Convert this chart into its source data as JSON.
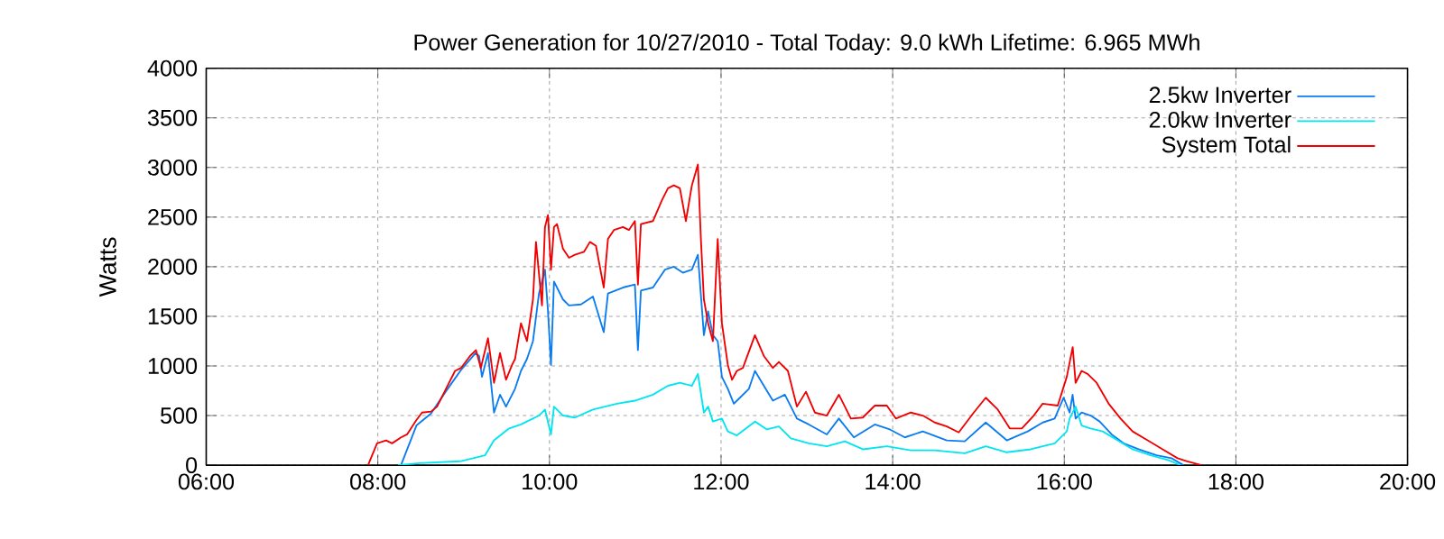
{
  "chart_data": {
    "type": "line",
    "title": "Power Generation for 10/27/2010 - Total Today: 9.0 kWh   Lifetime: 6.965 MWh",
    "ylabel": "Watts",
    "xlim": [
      6,
      20
    ],
    "ylim": [
      0,
      4000
    ],
    "xticks": [
      {
        "value": 6,
        "label": "06:00"
      },
      {
        "value": 8,
        "label": "08:00"
      },
      {
        "value": 10,
        "label": "10:00"
      },
      {
        "value": 12,
        "label": "12:00"
      },
      {
        "value": 14,
        "label": "14:00"
      },
      {
        "value": 16,
        "label": "16:00"
      },
      {
        "value": 18,
        "label": "18:00"
      },
      {
        "value": 20,
        "label": "20:00"
      }
    ],
    "yticks": [
      0,
      500,
      1000,
      1500,
      2000,
      2500,
      3000,
      3500,
      4000
    ],
    "grid": true,
    "legend": "top right",
    "marker": "none",
    "line_style": "solid",
    "series": [
      {
        "name": "2.5kw Inverter",
        "color": "#0a7cf0",
        "x": [
          8.27,
          8.45,
          8.62,
          8.79,
          8.97,
          9.14,
          9.18,
          9.214,
          9.284,
          9.354,
          9.424,
          9.494,
          9.599,
          9.668,
          9.738,
          9.808,
          9.878,
          9.948,
          9.983,
          10.018,
          10.053,
          10.158,
          10.228,
          10.367,
          10.507,
          10.633,
          10.682,
          10.856,
          10.996,
          11.031,
          11.066,
          11.206,
          11.346,
          11.45,
          11.555,
          11.66,
          11.73,
          11.8,
          11.849,
          11.905,
          11.961,
          12.01,
          12.079,
          12.149,
          12.185,
          12.325,
          12.395,
          12.499,
          12.604,
          12.744,
          12.884,
          13.023,
          13.233,
          13.373,
          13.548,
          13.792,
          13.967,
          14.142,
          14.351,
          14.631,
          14.84,
          15.085,
          15.33,
          15.574,
          15.749,
          15.888,
          15.993,
          16.062,
          16.097,
          16.132,
          16.202,
          16.307,
          16.412,
          16.552,
          16.691,
          16.866,
          17.076,
          17.25,
          17.39
        ],
        "values": [
          0,
          400,
          520,
          740,
          960,
          1130,
          1100,
          890,
          1130,
          530,
          710,
          590,
          770,
          950,
          1070,
          1250,
          1730,
          1970,
          1550,
          1010,
          1850,
          1670,
          1610,
          1620,
          1700,
          1340,
          1730,
          1790,
          1820,
          1160,
          1760,
          1790,
          1970,
          2000,
          1940,
          1970,
          2120,
          1310,
          1550,
          1310,
          1250,
          890,
          770,
          620,
          650,
          770,
          950,
          800,
          650,
          710,
          470,
          410,
          310,
          470,
          280,
          410,
          360,
          280,
          340,
          250,
          240,
          430,
          250,
          340,
          430,
          470,
          680,
          530,
          710,
          470,
          530,
          500,
          440,
          310,
          220,
          160,
          100,
          70,
          0
        ]
      },
      {
        "name": "2.0kw Inverter",
        "color": "#00e5f0",
        "x": [
          8.236,
          8.48,
          8.97,
          9.25,
          9.354,
          9.53,
          9.668,
          9.808,
          9.878,
          9.948,
          10.018,
          10.053,
          10.158,
          10.297,
          10.507,
          10.647,
          10.787,
          10.996,
          11.206,
          11.381,
          11.52,
          11.66,
          11.73,
          11.8,
          11.849,
          11.905,
          12.01,
          12.079,
          12.184,
          12.395,
          12.534,
          12.674,
          12.814,
          13.023,
          13.233,
          13.443,
          13.652,
          13.932,
          14.211,
          14.491,
          14.84,
          15.085,
          15.33,
          15.609,
          15.889,
          16.029,
          16.062,
          16.132,
          16.202,
          16.307,
          16.447,
          16.621,
          16.796,
          17.006,
          17.216,
          17.355
        ],
        "values": [
          0,
          20,
          40,
          100,
          250,
          370,
          410,
          470,
          500,
          560,
          310,
          590,
          500,
          480,
          560,
          590,
          620,
          650,
          710,
          800,
          830,
          800,
          920,
          530,
          590,
          440,
          470,
          340,
          300,
          440,
          360,
          390,
          270,
          220,
          190,
          240,
          160,
          190,
          150,
          150,
          120,
          190,
          130,
          160,
          220,
          340,
          470,
          590,
          400,
          370,
          340,
          250,
          160,
          100,
          50,
          0
        ]
      },
      {
        "name": "System Total",
        "color": "#f00000",
        "x": [
          7.886,
          7.991,
          8.096,
          8.166,
          8.271,
          8.341,
          8.446,
          8.515,
          8.62,
          8.69,
          8.795,
          8.9,
          8.97,
          9.074,
          9.144,
          9.2,
          9.284,
          9.354,
          9.424,
          9.494,
          9.564,
          9.599,
          9.668,
          9.738,
          9.808,
          9.843,
          9.913,
          9.948,
          9.983,
          10.018,
          10.053,
          10.088,
          10.158,
          10.228,
          10.297,
          10.402,
          10.472,
          10.542,
          10.633,
          10.682,
          10.752,
          10.856,
          10.926,
          10.996,
          11.031,
          11.066,
          11.206,
          11.311,
          11.381,
          11.45,
          11.52,
          11.59,
          11.66,
          11.73,
          11.765,
          11.8,
          11.849,
          11.905,
          11.961,
          12.01,
          12.079,
          12.128,
          12.184,
          12.255,
          12.395,
          12.499,
          12.604,
          12.674,
          12.779,
          12.884,
          12.989,
          13.093,
          13.233,
          13.373,
          13.513,
          13.652,
          13.792,
          13.932,
          14.037,
          14.211,
          14.351,
          14.491,
          14.631,
          14.77,
          14.945,
          15.085,
          15.225,
          15.365,
          15.505,
          15.644,
          15.748,
          15.924,
          16.029,
          16.098,
          16.132,
          16.202,
          16.272,
          16.377,
          16.517,
          16.656,
          16.796,
          16.971,
          17.146,
          17.32,
          17.425,
          17.6
        ],
        "values": [
          0,
          220,
          250,
          220,
          280,
          310,
          450,
          530,
          540,
          590,
          770,
          950,
          980,
          1100,
          1160,
          980,
          1280,
          830,
          1130,
          860,
          1010,
          1070,
          1430,
          1250,
          1670,
          2250,
          1610,
          2400,
          2520,
          1970,
          2400,
          2430,
          2180,
          2090,
          2120,
          2150,
          2250,
          2210,
          1790,
          2280,
          2370,
          2400,
          2370,
          2460,
          1820,
          2430,
          2460,
          2670,
          2790,
          2820,
          2790,
          2460,
          2820,
          3030,
          2280,
          1670,
          1430,
          1250,
          2280,
          1430,
          1010,
          860,
          950,
          980,
          1310,
          1100,
          980,
          1040,
          950,
          590,
          740,
          530,
          500,
          710,
          470,
          480,
          600,
          600,
          470,
          530,
          500,
          430,
          390,
          330,
          530,
          680,
          560,
          370,
          370,
          500,
          620,
          600,
          890,
          1190,
          830,
          950,
          920,
          830,
          620,
          470,
          340,
          250,
          160,
          70,
          40,
          0
        ]
      }
    ]
  }
}
